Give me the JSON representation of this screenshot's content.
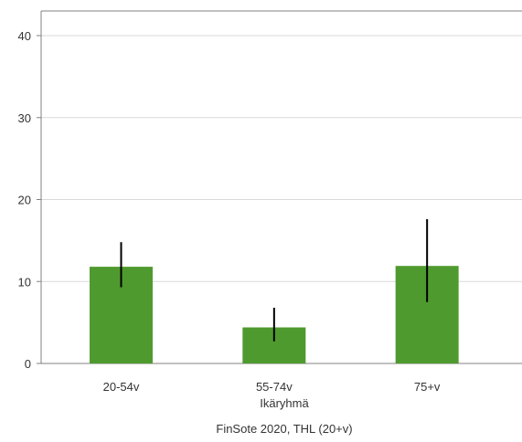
{
  "chart_data": {
    "type": "bar",
    "categories": [
      "20-54v",
      "55-74v",
      "75+v"
    ],
    "values": [
      11.8,
      4.4,
      11.9
    ],
    "error_bars": [
      {
        "low": 9.3,
        "high": 14.8
      },
      {
        "low": 2.7,
        "high": 6.8
      },
      {
        "low": 7.5,
        "high": 17.6
      }
    ],
    "xlabel": "Ikäryhmä",
    "ylabel": "",
    "ylim": [
      0,
      40
    ],
    "yticks": [
      0,
      10,
      20,
      30,
      40
    ],
    "grid": true,
    "source": "FinSote 2020, THL (20+v)",
    "colors": {
      "bar": "#4f9a2e",
      "error_bar": "#000000",
      "grid": "#d9d9d9",
      "axis": "#808080"
    }
  }
}
